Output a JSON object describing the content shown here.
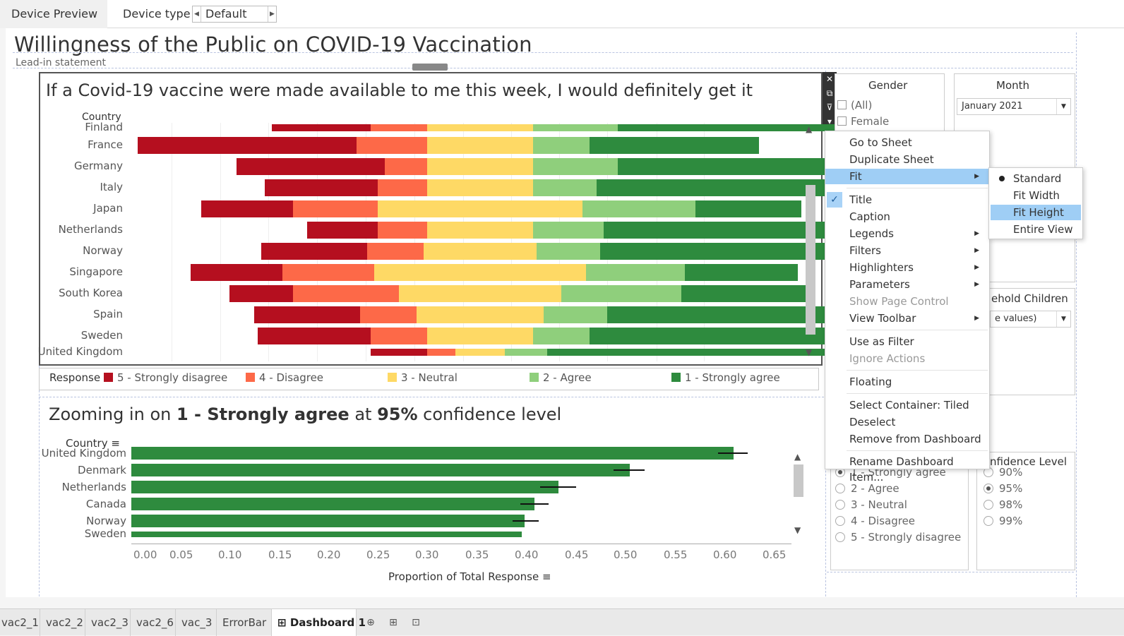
{
  "topbar": {
    "preview_tab": "Device Preview",
    "device_type_label": "Device type",
    "device_type_value": "Default"
  },
  "dashboard": {
    "title": "Willingness of the Public on COVID-19 Vaccination",
    "lead_in": "Lead-in statement"
  },
  "chart1": {
    "title": "If a Covid-19 vaccine were made available to me this week, I would definitely get it",
    "row_header": "Country",
    "countries": [
      "Finland",
      "France",
      "Germany",
      "Italy",
      "Japan",
      "Netherlands",
      "Norway",
      "Singapore",
      "South Korea",
      "Spain",
      "Sweden",
      "United Kingdom"
    ],
    "legend_title": "Response",
    "legend": [
      "5 - Strongly disagree",
      "4 - Disagree",
      "3 - Neutral",
      "2 - Agree",
      "1 - Strongly agree"
    ]
  },
  "chart2": {
    "title_prefix": "Zooming in on ",
    "title_bold1": "1 - Strongly agree",
    "title_mid": " at ",
    "title_bold2": "95%",
    "title_suffix": " confidence level",
    "row_header": "Country",
    "countries": [
      "United Kingdom",
      "Denmark",
      "Netherlands",
      "Canada",
      "Norway",
      "Sweden"
    ],
    "xlabel": "Proportion of Total Response",
    "ticks": [
      "0.00",
      "0.05",
      "0.10",
      "0.15",
      "0.20",
      "0.25",
      "0.30",
      "0.35",
      "0.40",
      "0.45",
      "0.50",
      "0.55",
      "0.60",
      "0.65"
    ]
  },
  "chart_data": [
    {
      "type": "bar",
      "title": "If a Covid-19 vaccine were made available to me this week, I would definitely get it",
      "categories": [
        "Finland",
        "France",
        "Germany",
        "Italy",
        "Japan",
        "Netherlands",
        "Norway",
        "Singapore",
        "South Korea",
        "Spain",
        "Sweden",
        "United Kingdom"
      ],
      "stacked": true,
      "series": [
        {
          "name": "5 - Strongly disagree",
          "color": "#b50f1f",
          "values": [
            0.14,
            0.31,
            0.21,
            0.16,
            0.13,
            0.1,
            0.15,
            0.13,
            0.09,
            0.15,
            0.16,
            0.08
          ]
        },
        {
          "name": "4 - Disagree",
          "color": "#fd6948",
          "values": [
            0.08,
            0.1,
            0.06,
            0.07,
            0.12,
            0.07,
            0.08,
            0.13,
            0.15,
            0.08,
            0.08,
            0.04
          ]
        },
        {
          "name": "3 - Neutral",
          "color": "#fed965",
          "values": [
            0.15,
            0.15,
            0.15,
            0.15,
            0.29,
            0.15,
            0.16,
            0.3,
            0.23,
            0.18,
            0.15,
            0.07
          ]
        },
        {
          "name": "2 - Agree",
          "color": "#8fcf7c",
          "values": [
            0.12,
            0.08,
            0.12,
            0.09,
            0.16,
            0.1,
            0.09,
            0.14,
            0.17,
            0.09,
            0.08,
            0.06
          ]
        },
        {
          "name": "1 - Strongly agree",
          "color": "#2e8b3e",
          "values": [
            0.39,
            0.24,
            0.34,
            0.38,
            0.15,
            0.43,
            0.39,
            0.16,
            0.19,
            0.36,
            0.41,
            0.61
          ]
        }
      ]
    },
    {
      "type": "bar",
      "orientation": "horizontal",
      "categories": [
        "United Kingdom",
        "Denmark",
        "Netherlands",
        "Canada",
        "Norway",
        "Sweden"
      ],
      "values": [
        0.608,
        0.503,
        0.431,
        0.407,
        0.397,
        0.394
      ],
      "error_low": [
        0.592,
        0.487,
        0.413,
        0.393,
        0.385,
        null
      ],
      "error_high": [
        0.622,
        0.518,
        0.449,
        0.421,
        0.411,
        null
      ],
      "xlabel": "Proportion of Total Response",
      "xlim": [
        0,
        0.65
      ]
    }
  ],
  "filters": {
    "gender": {
      "title": "Gender",
      "options": [
        "(All)",
        "Female"
      ]
    },
    "month": {
      "title": "Month",
      "value": "January 2021"
    },
    "household": {
      "title": "ehold Children",
      "value": "e values)"
    },
    "response": {
      "options": [
        "1 - Strongly agree",
        "2 - Agree",
        "3 - Neutral",
        "4 - Disagree",
        "5 - Strongly disagree"
      ],
      "selected": 0
    },
    "confidence": {
      "title": "nfidence Level",
      "options": [
        "90%",
        "95%",
        "98%",
        "99%"
      ],
      "selected": 1
    }
  },
  "context_menu": {
    "items": [
      "Go to Sheet",
      "Duplicate Sheet",
      "Fit",
      "Title",
      "Caption",
      "Legends",
      "Filters",
      "Highlighters",
      "Parameters",
      "Show Page Control",
      "View Toolbar",
      "Use as Filter",
      "Ignore Actions",
      "Floating",
      "Select Container: Tiled",
      "Deselect",
      "Remove from Dashboard",
      "Rename Dashboard Item..."
    ],
    "fit_submenu": [
      "Standard",
      "Fit Width",
      "Fit Height",
      "Entire View"
    ]
  },
  "sheet_tabs": [
    "vac2_1",
    "vac2_2",
    "vac2_3",
    "vac2_6",
    "vac_3",
    "ErrorBar",
    "Dashboard 1"
  ]
}
